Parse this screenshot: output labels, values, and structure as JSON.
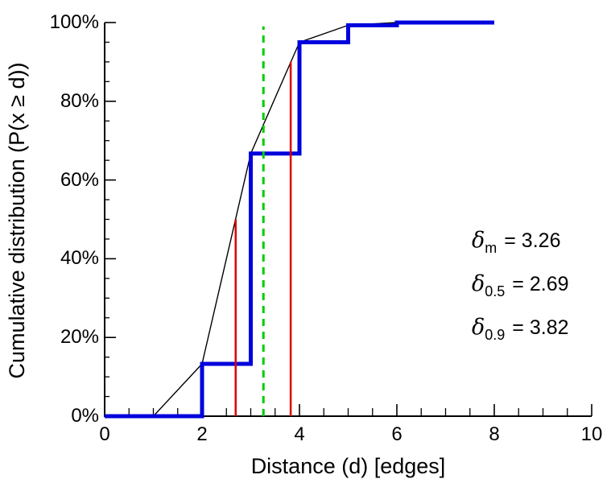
{
  "chart_data": {
    "type": "line",
    "title": "",
    "xlabel": "Distance (d) [edges]",
    "ylabel": "Cumulative distribution (P(x ≥ d))",
    "xlim": [
      0,
      10
    ],
    "ylim": [
      0,
      100
    ],
    "grid": false,
    "legend": null,
    "x_ticks": [
      0,
      2,
      4,
      6,
      8,
      10
    ],
    "x_tick_labels": [
      "0",
      "2",
      "4",
      "6",
      "8",
      "10"
    ],
    "x_minor_tick_step": 0.5,
    "y_ticks": [
      0,
      20,
      40,
      60,
      80,
      100
    ],
    "y_tick_labels": [
      "0%",
      "20%",
      "40%",
      "60%",
      "80%",
      "100%"
    ],
    "y_minor_tick_step": 5,
    "series": [
      {
        "name": "linear-interpolation-curve",
        "type": "line",
        "color": "#000000",
        "width": 1.4,
        "points": [
          [
            0,
            0
          ],
          [
            1,
            0
          ],
          [
            2,
            13.3
          ],
          [
            3,
            66.7
          ],
          [
            4,
            95
          ],
          [
            5,
            99.3
          ],
          [
            6,
            100
          ],
          [
            8,
            100
          ]
        ]
      },
      {
        "name": "cumulative-distance-distribution",
        "type": "step",
        "color": "#0000dd",
        "width": 5,
        "points": [
          [
            0,
            0
          ],
          [
            2,
            0
          ],
          [
            2,
            13.3
          ],
          [
            3,
            13.3
          ],
          [
            3,
            66.7
          ],
          [
            4,
            66.7
          ],
          [
            4,
            95
          ],
          [
            5,
            95
          ],
          [
            5,
            99.3
          ],
          [
            6,
            99.3
          ],
          [
            6,
            100
          ],
          [
            8,
            100
          ]
        ]
      }
    ],
    "vlines": [
      {
        "name": "median-distance-line",
        "x": 2.69,
        "y_from": 0,
        "y_to": 50,
        "color": "#dd0000",
        "width": 2.5,
        "dash": ""
      },
      {
        "name": "p90-distance-line",
        "x": 3.82,
        "y_from": 0,
        "y_to": 90,
        "color": "#dd0000",
        "width": 2.5,
        "dash": ""
      },
      {
        "name": "mean-distance-line",
        "x": 3.26,
        "y_from": 0,
        "y_to": 99,
        "color": "#00cc00",
        "width": 3,
        "dash": "9,7"
      }
    ],
    "annotations": [
      {
        "symbol": "δ",
        "subscript": "m",
        "value": "= 3.26"
      },
      {
        "symbol": "δ",
        "subscript": "0.5",
        "value": "= 2.69"
      },
      {
        "symbol": "δ",
        "subscript": "0.9",
        "value": "= 3.82"
      }
    ]
  }
}
